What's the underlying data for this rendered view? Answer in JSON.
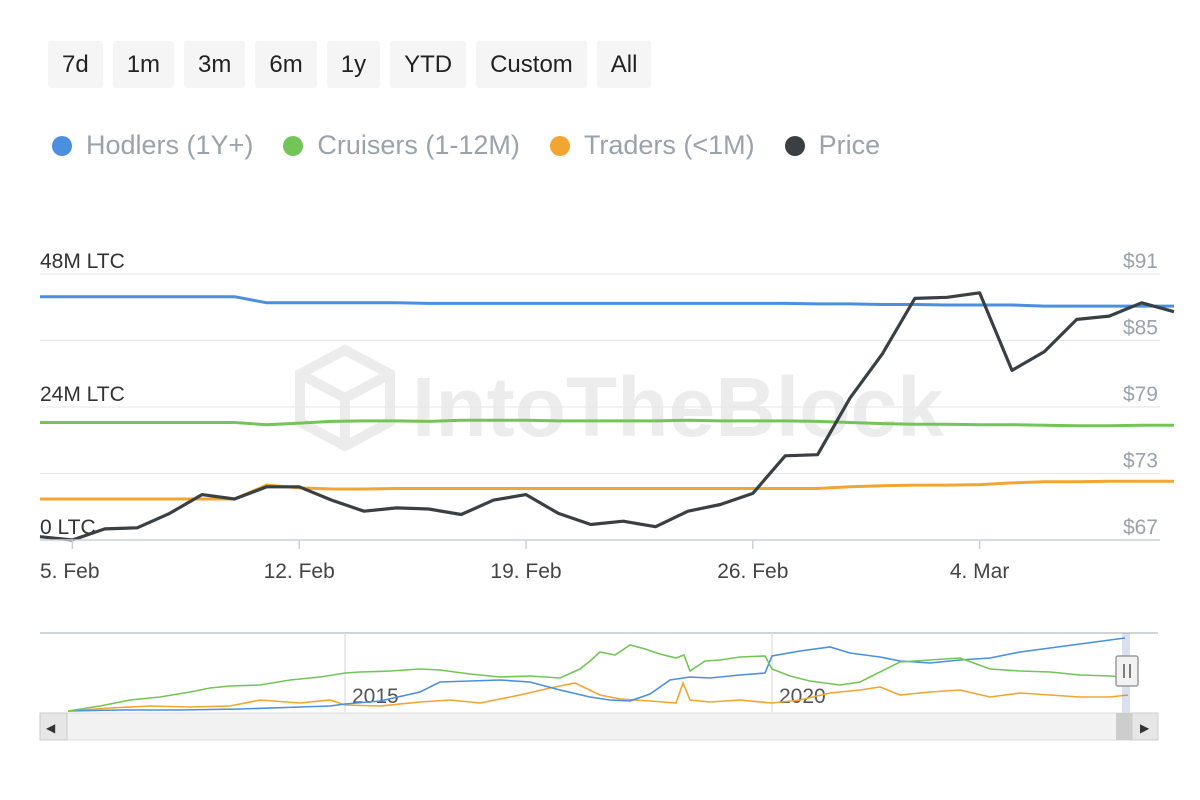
{
  "range_buttons": [
    "7d",
    "1m",
    "3m",
    "6m",
    "1y",
    "YTD",
    "Custom",
    "All"
  ],
  "watermark": "IntoTheBlock",
  "colors": {
    "hodlers": "#4a8fe0",
    "cruisers": "#73c557",
    "traders": "#f2a531",
    "price": "#3a3f44",
    "grid": "#e6e6e6",
    "left_axis_text": "#333333",
    "right_axis_text": "#9aa3ab"
  },
  "navigator": {
    "labels": [
      "2015",
      "2020"
    ],
    "left_arrow": "◀",
    "right_arrow": "▶"
  },
  "chart_data": {
    "type": "line",
    "x": [
      "Feb 4",
      "Feb 5",
      "Feb 6",
      "Feb 7",
      "Feb 8",
      "Feb 9",
      "Feb 10",
      "Feb 11",
      "Feb 12",
      "Feb 13",
      "Feb 14",
      "Feb 15",
      "Feb 16",
      "Feb 17",
      "Feb 18",
      "Feb 19",
      "Feb 20",
      "Feb 21",
      "Feb 22",
      "Feb 23",
      "Feb 24",
      "Feb 25",
      "Feb 26",
      "Feb 27",
      "Feb 28",
      "Feb 29",
      "Mar 1",
      "Mar 2",
      "Mar 3",
      "Mar 4",
      "Mar 5",
      "Mar 6",
      "Mar 7",
      "Mar 8",
      "Mar 9",
      "Mar 10"
    ],
    "x_ticks": [
      "5. Feb",
      "12. Feb",
      "19. Feb",
      "26. Feb",
      "4. Mar"
    ],
    "left_axis": {
      "ticks": [
        "48M LTC",
        "24M LTC",
        "0 LTC"
      ],
      "range": [
        0,
        48
      ]
    },
    "right_axis": {
      "ticks": [
        "$91",
        "$85",
        "$79",
        "$73",
        "$67"
      ],
      "range": [
        67,
        91
      ]
    },
    "series": [
      {
        "name": "Hodlers (1Y+)",
        "axis": "left",
        "color": "#4a8fe0",
        "values": [
          43.9,
          43.9,
          43.9,
          43.9,
          43.9,
          43.9,
          43.9,
          42.8,
          42.8,
          42.8,
          42.8,
          42.8,
          42.7,
          42.7,
          42.7,
          42.7,
          42.7,
          42.7,
          42.7,
          42.7,
          42.7,
          42.7,
          42.7,
          42.7,
          42.6,
          42.6,
          42.5,
          42.5,
          42.4,
          42.4,
          42.4,
          42.2,
          42.2,
          42.2,
          42.2,
          42.2
        ]
      },
      {
        "name": "Cruisers (1-12M)",
        "axis": "left",
        "color": "#73c557",
        "values": [
          21.2,
          21.2,
          21.2,
          21.2,
          21.2,
          21.2,
          21.2,
          20.8,
          21.1,
          21.4,
          21.5,
          21.5,
          21.4,
          21.6,
          21.6,
          21.6,
          21.5,
          21.5,
          21.5,
          21.5,
          21.6,
          21.5,
          21.5,
          21.5,
          21.4,
          21.2,
          21.0,
          20.9,
          20.9,
          20.8,
          20.8,
          20.7,
          20.6,
          20.6,
          20.7,
          20.7
        ]
      },
      {
        "name": "Traders (<1M)",
        "axis": "left",
        "color": "#f2a531",
        "values": [
          7.4,
          7.4,
          7.4,
          7.4,
          7.4,
          7.4,
          7.4,
          9.9,
          9.4,
          9.2,
          9.2,
          9.3,
          9.3,
          9.3,
          9.3,
          9.3,
          9.3,
          9.3,
          9.3,
          9.3,
          9.3,
          9.3,
          9.3,
          9.3,
          9.3,
          9.6,
          9.8,
          9.9,
          9.9,
          10.0,
          10.3,
          10.5,
          10.5,
          10.6,
          10.6,
          10.6
        ]
      },
      {
        "name": "Price",
        "axis": "right",
        "color": "#3a3f44",
        "values": [
          67.3,
          67.0,
          68.0,
          68.1,
          69.4,
          71.1,
          70.7,
          71.8,
          71.8,
          70.6,
          69.6,
          69.9,
          69.8,
          69.3,
          70.6,
          71.1,
          69.4,
          68.4,
          68.7,
          68.2,
          69.6,
          70.2,
          71.2,
          74.6,
          74.7,
          79.8,
          83.8,
          88.8,
          88.9,
          89.3,
          82.3,
          84.0,
          86.9,
          87.2,
          88.4,
          87.6
        ]
      }
    ]
  }
}
